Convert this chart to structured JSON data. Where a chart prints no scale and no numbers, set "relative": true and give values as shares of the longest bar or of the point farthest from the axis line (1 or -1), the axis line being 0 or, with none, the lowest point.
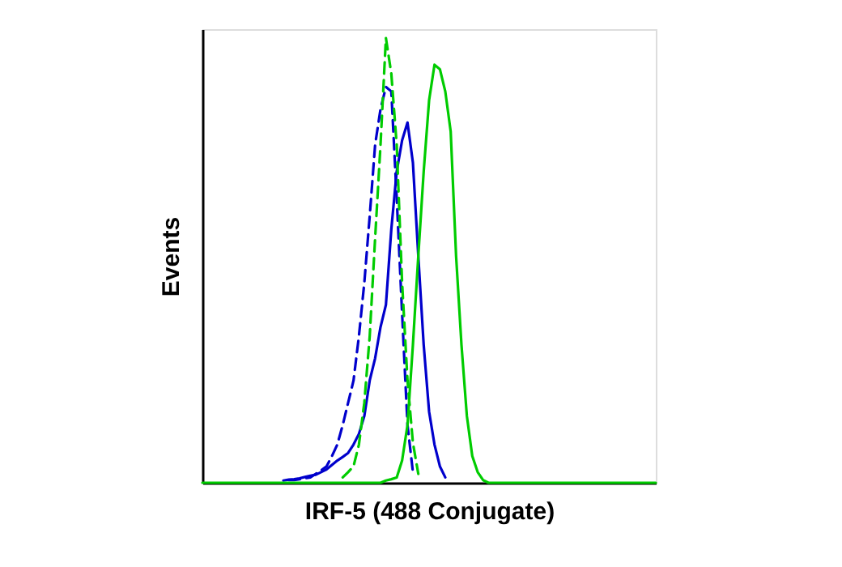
{
  "chart_data": {
    "type": "line",
    "xlabel": "IRF-5 (488 Conjugate)",
    "ylabel": "Events",
    "relative": true,
    "tick_labels": false,
    "grid": false,
    "marker": "none",
    "categories": [
      null,
      null,
      null,
      null,
      null,
      null,
      null,
      null,
      null,
      null,
      null,
      null,
      null,
      null,
      null,
      null,
      null,
      null,
      null,
      null,
      null,
      null,
      null,
      null,
      null,
      null,
      null,
      null,
      null,
      null,
      null,
      null,
      null,
      null,
      null,
      null,
      null,
      null,
      null,
      null,
      null,
      null,
      null,
      null,
      null,
      null,
      null,
      null,
      null,
      null,
      null,
      null,
      null,
      null,
      null,
      null,
      null,
      null,
      null,
      null,
      null,
      null,
      null,
      null,
      null,
      null,
      null,
      null,
      null,
      null,
      null,
      null,
      null,
      null,
      null,
      null,
      null,
      null,
      null,
      null,
      null,
      null,
      null,
      null,
      null
    ],
    "series": [
      {
        "color": "#0000cc",
        "line_style": "solid",
        "values": [
          null,
          null,
          null,
          null,
          null,
          null,
          null,
          null,
          null,
          null,
          null,
          null,
          null,
          null,
          null,
          0.005,
          0.007,
          0.008,
          0.01,
          0.013,
          0.016,
          0.018,
          0.024,
          0.03,
          0.04,
          0.05,
          0.058,
          0.067,
          0.086,
          0.11,
          0.15,
          0.23,
          0.28,
          0.35,
          0.4,
          0.57,
          0.7,
          0.77,
          0.81,
          0.72,
          0.51,
          0.31,
          0.16,
          0.086,
          0.037,
          0.012,
          null,
          null,
          null,
          null,
          null,
          null,
          null,
          null,
          null,
          null,
          null,
          null,
          null,
          null,
          null,
          null,
          null,
          null,
          null,
          null,
          null,
          null,
          null,
          null,
          null,
          null,
          null,
          null,
          null,
          null,
          null,
          null,
          null,
          null,
          null,
          null,
          null,
          null,
          null
        ]
      },
      {
        "color": "#0000cc",
        "line_style": "dashed",
        "values": [
          null,
          null,
          null,
          null,
          null,
          null,
          null,
          null,
          null,
          null,
          null,
          null,
          null,
          null,
          null,
          null,
          0.006,
          0.006,
          0.008,
          0.01,
          0.012,
          0.02,
          0.028,
          0.037,
          0.06,
          0.086,
          0.13,
          0.18,
          0.23,
          0.33,
          0.45,
          0.6,
          0.76,
          0.84,
          0.89,
          0.88,
          0.64,
          0.38,
          0.13,
          0.024,
          null,
          null,
          null,
          null,
          null,
          null,
          null,
          null,
          null,
          null,
          null,
          null,
          null,
          null,
          null,
          null,
          null,
          null,
          null,
          null,
          null,
          null,
          null,
          null,
          null,
          null,
          null,
          null,
          null,
          null,
          null,
          null,
          null,
          null,
          null,
          null,
          null,
          null,
          null,
          null,
          null,
          null,
          null,
          null,
          null
        ]
      },
      {
        "color": "#00cc00",
        "line_style": "dashed",
        "values": [
          null,
          null,
          null,
          null,
          null,
          null,
          null,
          null,
          null,
          null,
          null,
          null,
          null,
          null,
          null,
          null,
          null,
          null,
          null,
          null,
          null,
          null,
          null,
          null,
          null,
          null,
          0.012,
          0.024,
          0.037,
          0.086,
          0.18,
          0.33,
          0.55,
          0.76,
          1,
          0.92,
          0.76,
          0.45,
          0.23,
          0.09,
          0.02,
          null,
          null,
          null,
          null,
          null,
          null,
          null,
          null,
          null,
          null,
          null,
          null,
          null,
          null,
          null,
          null,
          null,
          null,
          null,
          null,
          null,
          null,
          null,
          null,
          null,
          null,
          null,
          null,
          null,
          null,
          null,
          null,
          null,
          null,
          null,
          null,
          null,
          null,
          null,
          null,
          null,
          null,
          null,
          null
        ]
      },
      {
        "color": "#00cc00",
        "line_style": "solid",
        "values": [
          0,
          0,
          0,
          0,
          0,
          0,
          0,
          0,
          0,
          0,
          0,
          0,
          0,
          0,
          0,
          0,
          0,
          0,
          0,
          0,
          0,
          0,
          0,
          0,
          0,
          0,
          0,
          0,
          0,
          0,
          0,
          0,
          0,
          0,
          0.005,
          0.008,
          0.012,
          0.05,
          0.13,
          0.31,
          0.51,
          0.7,
          0.86,
          0.94,
          0.93,
          0.88,
          0.79,
          0.51,
          0.31,
          0.15,
          0.06,
          0.024,
          0.006,
          0,
          0,
          0,
          0,
          0,
          0,
          0,
          0,
          0,
          0,
          0,
          0,
          0,
          0,
          0,
          0,
          0,
          0,
          0,
          0,
          0,
          0,
          0,
          0,
          0,
          0,
          0,
          0,
          0,
          0,
          0,
          0
        ]
      }
    ]
  }
}
